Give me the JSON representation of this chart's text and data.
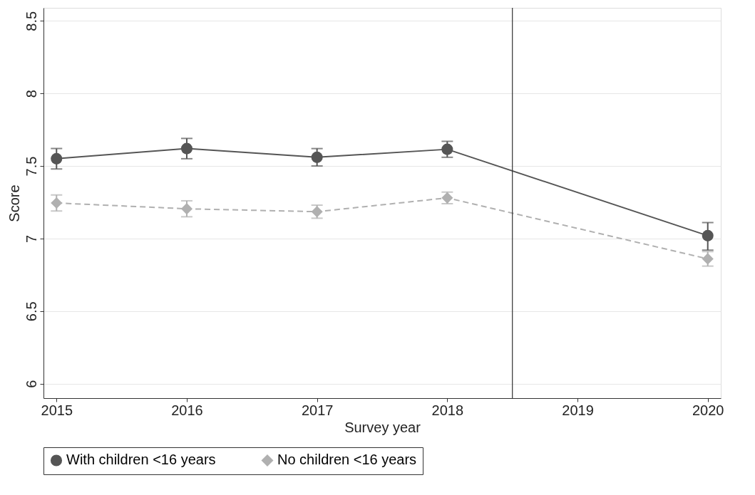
{
  "chart_data": {
    "type": "line",
    "xlabel": "Survey year",
    "ylabel": "Score",
    "x": [
      2015,
      2016,
      2017,
      2018,
      2020
    ],
    "series": [
      {
        "name": "With children <16 years",
        "color": "#555555",
        "marker": "circle",
        "line_style": "solid",
        "values": [
          7.55,
          7.62,
          7.56,
          7.615,
          7.02
        ],
        "errors": [
          [
            7.48,
            7.62
          ],
          [
            7.55,
            7.69
          ],
          [
            7.5,
            7.62
          ],
          [
            7.56,
            7.67
          ],
          [
            6.92,
            7.11
          ]
        ]
      },
      {
        "name": "No children <16 years",
        "color": "#b0b0b0",
        "marker": "diamond",
        "line_style": "dashed",
        "values": [
          7.245,
          7.205,
          7.185,
          7.28,
          6.86
        ],
        "errors": [
          [
            7.19,
            7.3
          ],
          [
            7.15,
            7.26
          ],
          [
            7.14,
            7.23
          ],
          [
            7.24,
            7.32
          ],
          [
            6.81,
            6.91
          ]
        ]
      }
    ],
    "xlim": [
      2014.9,
      2020.1
    ],
    "xticks": [
      2015,
      2016,
      2017,
      2018,
      2019,
      2020
    ],
    "ylim": [
      5.9,
      8.59
    ],
    "yticks": [
      6,
      6.5,
      7,
      7.5,
      8,
      8.5
    ],
    "ref_lines": [
      {
        "axis": "x",
        "value": 2018.5,
        "color": "#333333"
      }
    ],
    "grid": "y",
    "legend": "bottom"
  }
}
